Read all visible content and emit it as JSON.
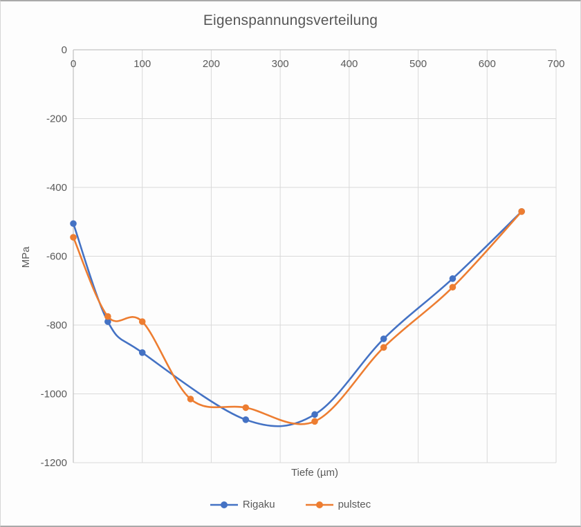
{
  "chart_data": {
    "type": "line",
    "title": "Eigenspannungsverteilung",
    "xlabel": "Tiefe (µm)",
    "ylabel": "MPa",
    "xlim": [
      0,
      700
    ],
    "ylim": [
      -1200,
      0
    ],
    "x_ticks": [
      0,
      100,
      200,
      300,
      400,
      500,
      600,
      700
    ],
    "y_ticks": [
      0,
      -200,
      -400,
      -600,
      -800,
      -1000,
      -1200
    ],
    "grid": true,
    "line_smoothing": true,
    "legend_position": "bottom",
    "colors": {
      "grid": "#d9d9d9",
      "axis": "#c4c4c4",
      "text": "#595959"
    },
    "series": [
      {
        "name": "Rigaku",
        "color": "#4472C4",
        "x": [
          0,
          50,
          100,
          250,
          350,
          450,
          550,
          650
        ],
        "y": [
          -505,
          -790,
          -880,
          -1075,
          -1060,
          -840,
          -665,
          -470
        ]
      },
      {
        "name": "pulstec",
        "color": "#ED7D31",
        "x": [
          0,
          50,
          100,
          170,
          250,
          350,
          450,
          550,
          650
        ],
        "y": [
          -545,
          -775,
          -790,
          -1015,
          -1040,
          -1080,
          -865,
          -690,
          -470
        ]
      }
    ]
  }
}
